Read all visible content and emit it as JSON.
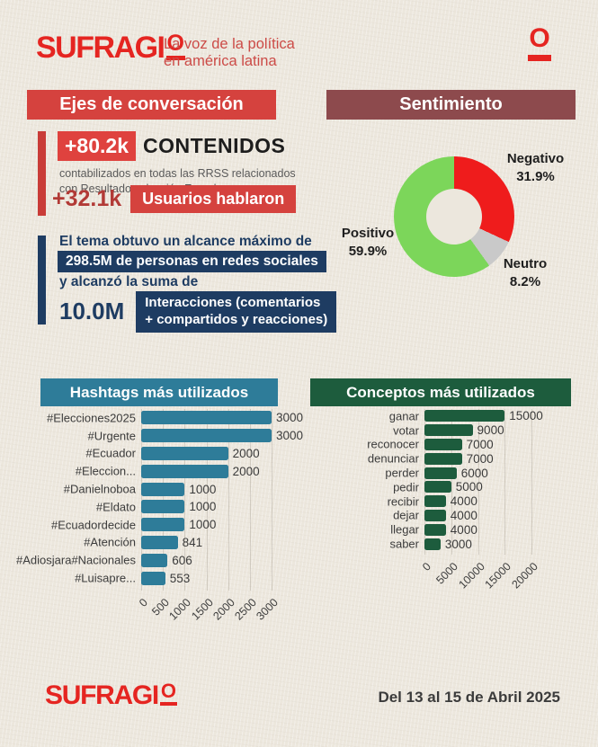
{
  "header": {
    "logo_text": "SUFRAGI",
    "logo_o": "O",
    "tagline_line1": "La voz de la política",
    "tagline_line2": "en américa latina",
    "isotype": "O"
  },
  "banners": {
    "ejes": "Ejes de conversación",
    "sentimiento": "Sentimiento"
  },
  "stats": {
    "contenidos_value": "+80.2k",
    "contenidos_label": "CONTENIDOS",
    "contenidos_caption_line1": "contabilizados en todas las RRSS relacionados",
    "contenidos_caption_line2": "con Resultados elección Ecuador",
    "usuarios_value": "+32.1k",
    "usuarios_label": "Usuarios hablaron"
  },
  "alcance": {
    "line1": "El tema obtuvo un alcance máximo de",
    "reach_value": "298.5M",
    "reach_rest": " de personas en redes sociales",
    "line2": "y alcanzó la suma de",
    "interactions_value": "10.0M",
    "interactions_label_line1": "Interacciones (comentarios",
    "interactions_label_line2": "+ compartidos y reacciones)"
  },
  "colors": {
    "paper": "#ece7dd",
    "accent_red": "#d5423e",
    "dark_red_text": "#b23a36",
    "maroon": "#8d4a4d",
    "navy": "#1e3c62",
    "teal": "#2e7c99",
    "dark_green": "#1d5c3d",
    "logo_red": "#e52521",
    "donut_negative": "#ef1c1c",
    "donut_neutral": "#c9c9c9",
    "donut_positive": "#7cd65a"
  },
  "chart_data": [
    {
      "type": "pie",
      "donut": true,
      "title": "Sentimiento",
      "labels": [
        "Negativo",
        "Neutro",
        "Positivo"
      ],
      "values": [
        31.9,
        8.2,
        59.9
      ],
      "unit": "%",
      "colors": [
        "#ef1c1c",
        "#c9c9c9",
        "#7cd65a"
      ],
      "start_angle": "top",
      "direction": "clockwise",
      "legend_position": "around-chart"
    },
    {
      "type": "bar",
      "orientation": "horizontal",
      "title": "Hashtags más utilizados",
      "categories": [
        "#Elecciones2025",
        "#Urgente",
        "#Ecuador",
        "#Eleccion...",
        "#Danielnoboa",
        "#Eldato",
        "#Ecuadordecide",
        "#Atención",
        "#Adiosjara#Nacionales",
        "#Luisapre..."
      ],
      "values": [
        3000,
        3000,
        2000,
        2000,
        1000,
        1000,
        1000,
        841,
        606,
        553
      ],
      "xlim": [
        0,
        3000
      ],
      "xticks": [
        0,
        500,
        1000,
        1500,
        2000,
        2500,
        3000
      ],
      "grid": true,
      "bar_color": "#2e7c99",
      "value_labels": true
    },
    {
      "type": "bar",
      "orientation": "horizontal",
      "title": "Conceptos más utilizados",
      "categories": [
        "ganar",
        "votar",
        "reconocer",
        "denunciar",
        "perder",
        "pedir",
        "recibir",
        "dejar",
        "llegar",
        "saber"
      ],
      "values": [
        15000,
        9000,
        7000,
        7000,
        6000,
        5000,
        4000,
        4000,
        4000,
        3000
      ],
      "xlim": [
        0,
        20000
      ],
      "xticks": [
        0,
        5000,
        10000,
        15000,
        20000
      ],
      "grid": true,
      "bar_color": "#1d5c3d",
      "value_labels": true
    }
  ],
  "footer": {
    "logo_text": "SUFRAGI",
    "logo_o": "O",
    "date_range": "Del 13 al 15 de Abril 2025"
  }
}
